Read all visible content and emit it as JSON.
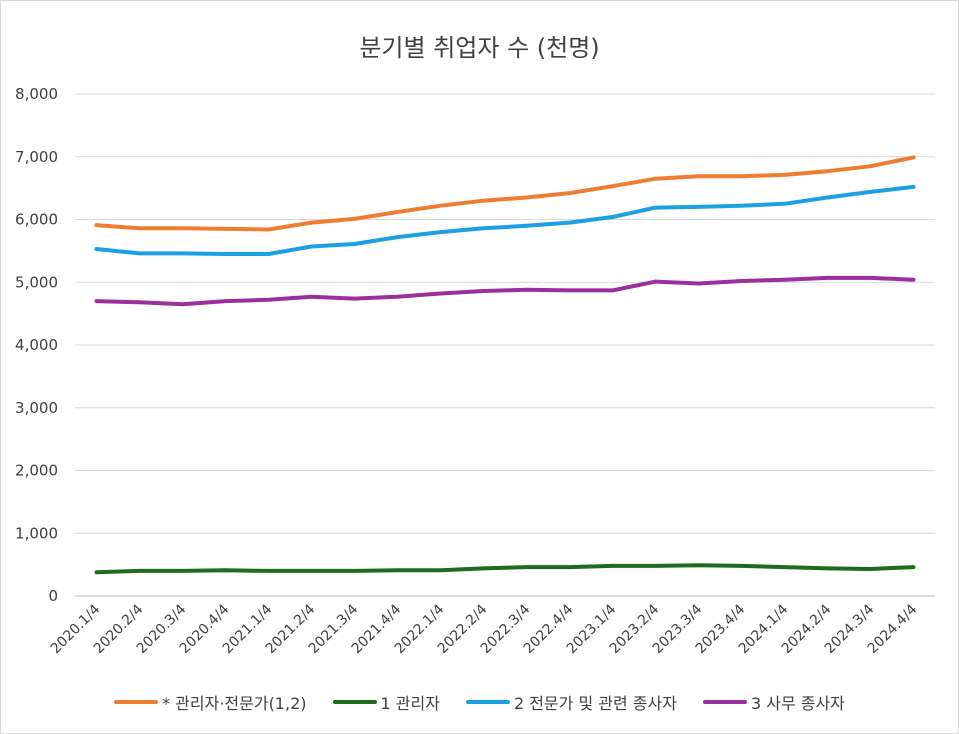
{
  "chart_data": {
    "type": "line",
    "title": "분기별 취업자 수 (천명)",
    "categories": [
      "2020.1/4",
      "2020.2/4",
      "2020.3/4",
      "2020.4/4",
      "2021.1/4",
      "2021.2/4",
      "2021.3/4",
      "2021.4/4",
      "2022.1/4",
      "2022.2/4",
      "2022.3/4",
      "2022.4/4",
      "2023.1/4",
      "2023.2/4",
      "2023.3/4",
      "2023.4/4",
      "2024.1/4",
      "2024.2/4",
      "2024.3/4",
      "2024.4/4"
    ],
    "ylim": [
      0,
      8000
    ],
    "yticks": [
      "0",
      "1,000",
      "2,000",
      "3,000",
      "4,000",
      "5,000",
      "6,000",
      "7,000",
      "8,000"
    ],
    "ytick_values": [
      0,
      1000,
      2000,
      3000,
      4000,
      5000,
      6000,
      7000,
      8000
    ],
    "grid": true,
    "legend_position": "bottom",
    "series": [
      {
        "name": "* 관리자·전문가(1,2)",
        "color": "#ed7d31",
        "values": [
          5910,
          5860,
          5860,
          5850,
          5840,
          5950,
          6010,
          6120,
          6220,
          6300,
          6350,
          6420,
          6530,
          6650,
          6690,
          6690,
          6710,
          6770,
          6850,
          6990
        ]
      },
      {
        "name": "1 관리자",
        "color": "#1e6b1e",
        "values": [
          380,
          400,
          400,
          410,
          400,
          400,
          400,
          410,
          410,
          440,
          460,
          460,
          480,
          480,
          490,
          480,
          460,
          440,
          430,
          460
        ]
      },
      {
        "name": "2 전문가 및 관련 종사자",
        "color": "#1ba1e2",
        "values": [
          5530,
          5460,
          5460,
          5450,
          5450,
          5570,
          5610,
          5720,
          5800,
          5860,
          5900,
          5950,
          6040,
          6190,
          6200,
          6220,
          6250,
          6350,
          6440,
          6520
        ]
      },
      {
        "name": "3 사무 종사자",
        "color": "#9b2f9e",
        "values": [
          4700,
          4680,
          4650,
          4700,
          4720,
          4770,
          4740,
          4770,
          4820,
          4860,
          4880,
          4870,
          4870,
          5010,
          4980,
          5020,
          5040,
          5070,
          5070,
          5040
        ]
      }
    ]
  }
}
